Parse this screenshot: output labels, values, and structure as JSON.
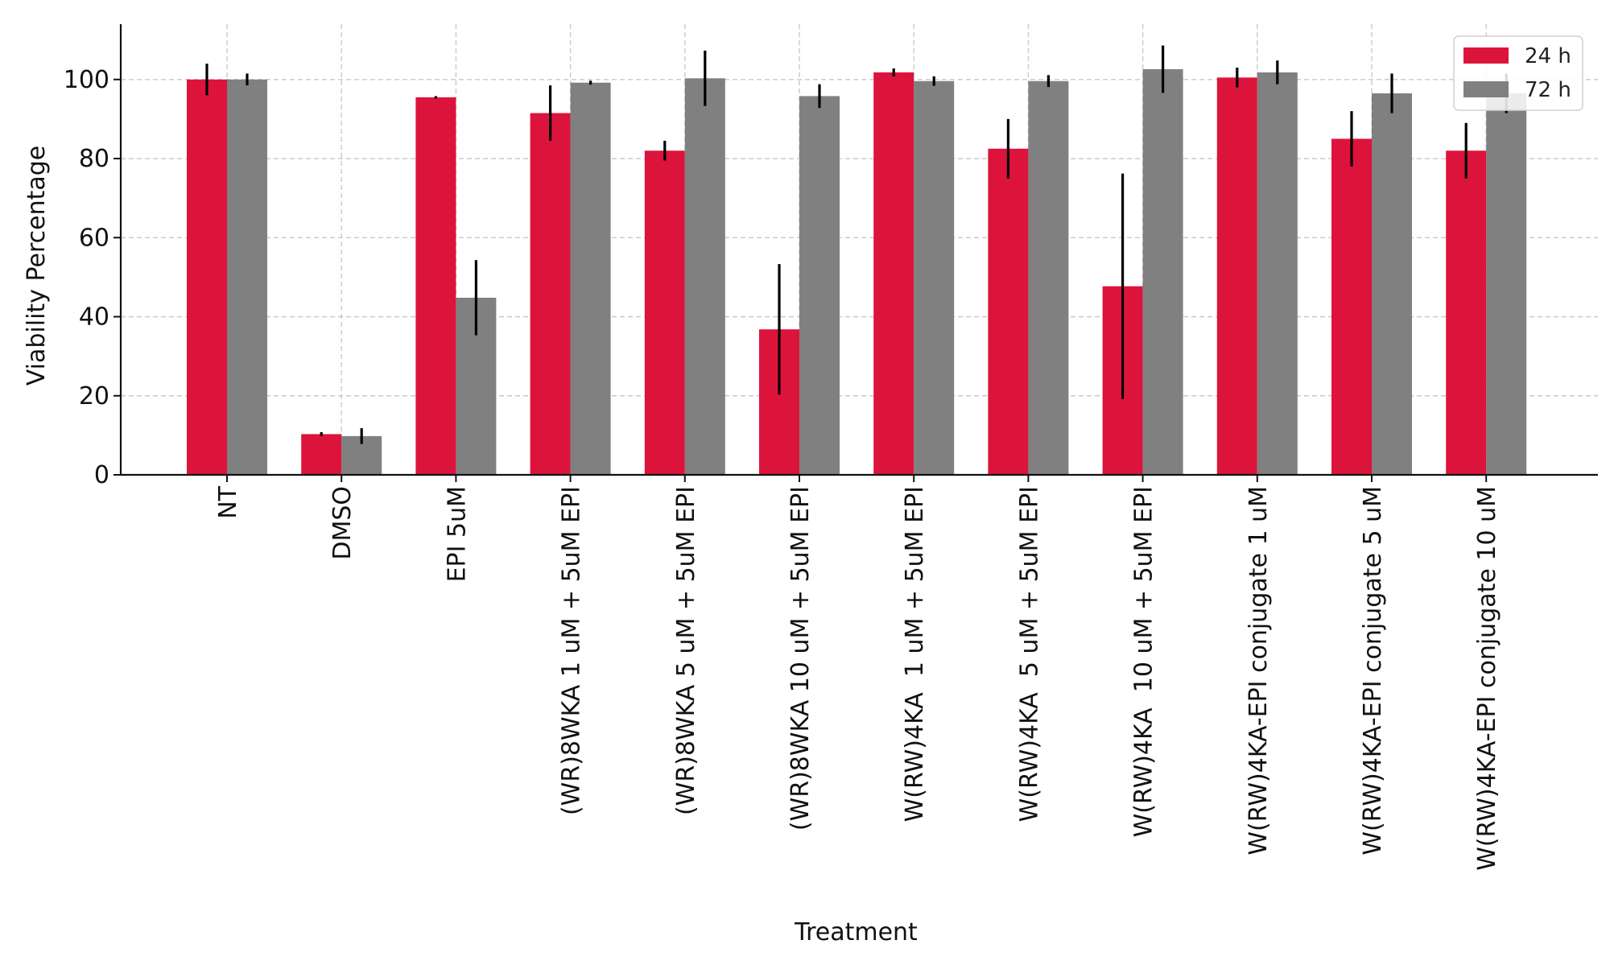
{
  "chart_data": {
    "type": "bar",
    "title": "",
    "xlabel": "Treatment",
    "ylabel": "Viability Percentage",
    "ylim": [
      0,
      114
    ],
    "yticks": [
      0,
      20,
      40,
      60,
      80,
      100
    ],
    "ytick_labels": [
      "0",
      "20",
      "40",
      "60",
      "80",
      "100"
    ],
    "grid": true,
    "legend_position": "top-right",
    "categories": [
      "NT",
      "DMSO",
      "EPI 5uM",
      "(WR)8WKA 1 uM + 5uM EPI",
      "(WR)8WKA 5 uM + 5uM EPI",
      "(WR)8WKA 10 uM + 5uM EPI",
      "W(RW)4KA  1 uM + 5uM EPI",
      "W(RW)4KA  5 uM + 5uM EPI",
      "W(RW)4KA  10 uM + 5uM EPI",
      "W(RW)4KA-EPI conjugate 1 uM",
      "W(RW)4KA-EPI conjugate 5 uM",
      "W(RW)4KA-EPI conjugate 10 uM"
    ],
    "series": [
      {
        "name": "24 h",
        "color": "#DC143C",
        "values": [
          100,
          10.3,
          95.5,
          91.5,
          82,
          36.8,
          101.8,
          82.5,
          47.7,
          100.5,
          85,
          82
        ],
        "errors": [
          4,
          0.5,
          0.3,
          7,
          2.5,
          16.5,
          1,
          7.5,
          28.5,
          2.5,
          7,
          7
        ]
      },
      {
        "name": "72 h",
        "color": "#808080",
        "values": [
          100,
          9.8,
          44.8,
          99.2,
          100.3,
          95.8,
          99.6,
          99.6,
          102.6,
          101.8,
          96.5,
          96.5
        ],
        "errors": [
          1.5,
          2,
          9.5,
          0.5,
          7,
          3,
          1.2,
          1.5,
          6,
          3,
          5,
          5
        ]
      }
    ]
  }
}
